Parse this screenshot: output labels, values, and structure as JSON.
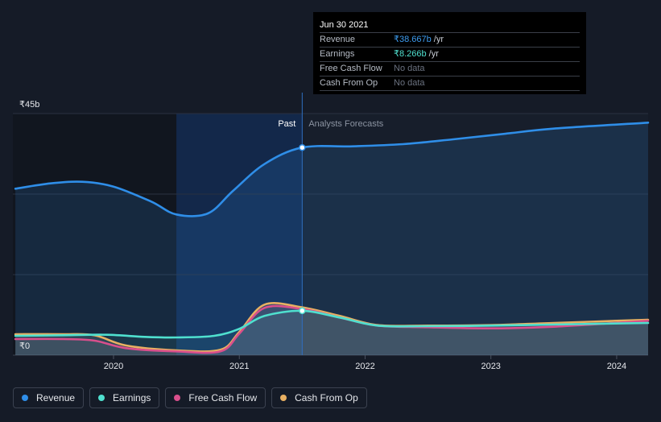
{
  "tooltip": {
    "date": "Jun 30 2021",
    "rows": [
      {
        "label": "Revenue",
        "value": "₹38.667b",
        "unit": "/yr"
      },
      {
        "label": "Earnings",
        "value": "₹8.266b",
        "unit": "/yr"
      },
      {
        "label": "Free Cash Flow",
        "value": "No data",
        "unit": ""
      },
      {
        "label": "Cash From Op",
        "value": "No data",
        "unit": ""
      }
    ]
  },
  "legend": [
    {
      "label": "Revenue",
      "color": "#2f8ee8"
    },
    {
      "label": "Earnings",
      "color": "#4fe0cf"
    },
    {
      "label": "Free Cash Flow",
      "color": "#d94f8c"
    },
    {
      "label": "Cash From Op",
      "color": "#e8b062"
    }
  ],
  "chart_data": {
    "type": "line",
    "ylabel_top": "₹45b",
    "ylabel_bottom": "₹0",
    "ylim": [
      0,
      45
    ],
    "xlim": [
      2019.2,
      2024.25
    ],
    "x_ticks": [
      {
        "label": "2020",
        "value": 2020
      },
      {
        "label": "2021",
        "value": 2021
      },
      {
        "label": "2022",
        "value": 2022
      },
      {
        "label": "2023",
        "value": 2023
      },
      {
        "label": "2024",
        "value": 2024
      }
    ],
    "past_label": "Past",
    "forecast_label": "Analysts Forecasts",
    "past_start": 2020.5,
    "divider": 2021.5,
    "series": [
      {
        "name": "Revenue",
        "color": "#2f8ee8",
        "points": [
          [
            2019.22,
            31.0
          ],
          [
            2019.5,
            32.0
          ],
          [
            2019.75,
            32.3
          ],
          [
            2020.0,
            31.4
          ],
          [
            2020.3,
            28.6
          ],
          [
            2020.5,
            26.2
          ],
          [
            2020.75,
            26.4
          ],
          [
            2020.95,
            30.6
          ],
          [
            2021.2,
            35.6
          ],
          [
            2021.5,
            38.667
          ],
          [
            2021.9,
            38.9
          ],
          [
            2022.3,
            39.3
          ],
          [
            2022.7,
            40.2
          ],
          [
            2023.1,
            41.2
          ],
          [
            2023.5,
            42.2
          ],
          [
            2024.25,
            43.3
          ]
        ]
      },
      {
        "name": "Earnings",
        "color": "#4fe0cf",
        "points": [
          [
            2019.22,
            3.6
          ],
          [
            2019.6,
            3.7
          ],
          [
            2019.95,
            3.8
          ],
          [
            2020.25,
            3.4
          ],
          [
            2020.5,
            3.3
          ],
          [
            2020.8,
            3.6
          ],
          [
            2021.0,
            4.9
          ],
          [
            2021.2,
            7.3
          ],
          [
            2021.5,
            8.266
          ],
          [
            2021.8,
            7.0
          ],
          [
            2022.1,
            5.5
          ],
          [
            2022.5,
            5.4
          ],
          [
            2023.0,
            5.5
          ],
          [
            2023.5,
            5.7
          ],
          [
            2024.25,
            6.0
          ]
        ]
      },
      {
        "name": "Free Cash Flow",
        "color": "#d94f8c",
        "points": [
          [
            2019.22,
            3.0
          ],
          [
            2019.6,
            3.0
          ],
          [
            2019.85,
            2.7
          ],
          [
            2020.1,
            1.3
          ],
          [
            2020.5,
            0.7
          ],
          [
            2020.85,
            0.7
          ],
          [
            2021.0,
            4.0
          ],
          [
            2021.2,
            8.8
          ],
          [
            2021.5,
            8.6
          ],
          [
            2021.8,
            7.0
          ],
          [
            2022.1,
            5.5
          ],
          [
            2022.5,
            5.2
          ],
          [
            2023.0,
            5.0
          ],
          [
            2023.5,
            5.3
          ],
          [
            2024.25,
            6.4
          ]
        ]
      },
      {
        "name": "Cash From Op",
        "color": "#e8b062",
        "points": [
          [
            2019.22,
            3.9
          ],
          [
            2019.6,
            3.9
          ],
          [
            2019.85,
            3.7
          ],
          [
            2020.1,
            1.8
          ],
          [
            2020.5,
            0.9
          ],
          [
            2020.85,
            1.0
          ],
          [
            2021.0,
            4.3
          ],
          [
            2021.2,
            9.4
          ],
          [
            2021.5,
            8.9
          ],
          [
            2021.8,
            7.3
          ],
          [
            2022.1,
            5.6
          ],
          [
            2022.5,
            5.5
          ],
          [
            2023.0,
            5.6
          ],
          [
            2023.5,
            6.0
          ],
          [
            2024.25,
            6.6
          ]
        ]
      }
    ]
  }
}
